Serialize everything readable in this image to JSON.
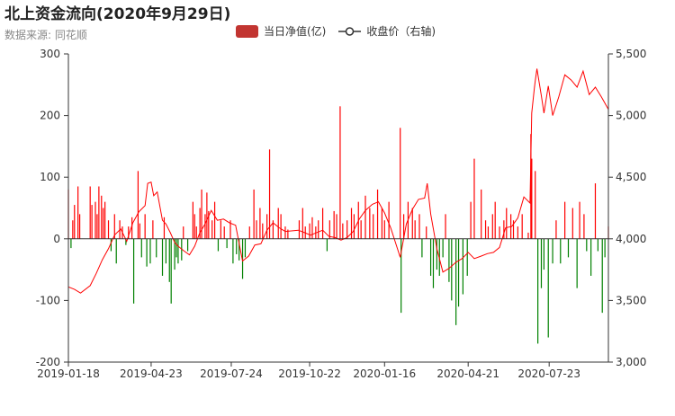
{
  "title": "北上资金流向(2020年9月29日)",
  "subtitle": "数据来源: 同花顺",
  "legend": {
    "bar_label": "当日净值(亿)",
    "line_label": "收盘价（右轴)"
  },
  "colors": {
    "positive_bar": "#ff0000",
    "negative_bar": "#008000",
    "line": "#ff0000",
    "legend_bar": "#c23531"
  },
  "chart_data": {
    "type": "bar",
    "x_tick_labels": [
      "2019-01-18",
      "2019-04-23",
      "2019-07-24",
      "2019-10-22",
      "2020-01-16",
      "2020-04-21",
      "2020-07-23"
    ],
    "x_range": [
      "2019-01-18",
      "2020-09-29"
    ],
    "y_left": {
      "min": -200,
      "max": 300,
      "ticks": [
        -200,
        -100,
        0,
        100,
        200,
        300
      ],
      "tick_labels": [
        "-200",
        "-100",
        "0",
        "100",
        "200",
        "300"
      ]
    },
    "y_right": {
      "min": 3000,
      "max": 5500,
      "ticks": [
        3000,
        3500,
        4000,
        4500,
        5000,
        5500
      ],
      "tick_labels": [
        "3,000",
        "3,500",
        "4,000",
        "4,500",
        "5,000",
        "5,500"
      ]
    },
    "grid": false,
    "legend_position": "top-center",
    "series": [
      {
        "name": "当日净值(亿)",
        "type": "bar",
        "axis": "left",
        "points": [
          [
            "2019-01-18",
            80
          ],
          [
            "2019-01-21",
            -15
          ],
          [
            "2019-01-23",
            30
          ],
          [
            "2019-01-25",
            55
          ],
          [
            "2019-01-29",
            85
          ],
          [
            "2019-01-31",
            40
          ],
          [
            "2019-02-12",
            85
          ],
          [
            "2019-02-14",
            55
          ],
          [
            "2019-02-18",
            60
          ],
          [
            "2019-02-20",
            40
          ],
          [
            "2019-02-22",
            85
          ],
          [
            "2019-02-25",
            70
          ],
          [
            "2019-02-27",
            50
          ],
          [
            "2019-03-01",
            60
          ],
          [
            "2019-03-05",
            30
          ],
          [
            "2019-03-08",
            -20
          ],
          [
            "2019-03-12",
            40
          ],
          [
            "2019-03-14",
            -40
          ],
          [
            "2019-03-18",
            30
          ],
          [
            "2019-03-21",
            20
          ],
          [
            "2019-03-25",
            -10
          ],
          [
            "2019-03-28",
            20
          ],
          [
            "2019-04-01",
            35
          ],
          [
            "2019-04-03",
            -105
          ],
          [
            "2019-04-08",
            110
          ],
          [
            "2019-04-10",
            25
          ],
          [
            "2019-04-12",
            -30
          ],
          [
            "2019-04-16",
            40
          ],
          [
            "2019-04-18",
            -45
          ],
          [
            "2019-04-22",
            -40
          ],
          [
            "2019-04-25",
            30
          ],
          [
            "2019-04-29",
            -30
          ],
          [
            "2019-05-06",
            -60
          ],
          [
            "2019-05-08",
            35
          ],
          [
            "2019-05-10",
            -40
          ],
          [
            "2019-05-14",
            -70
          ],
          [
            "2019-05-16",
            -105
          ],
          [
            "2019-05-20",
            -50
          ],
          [
            "2019-05-22",
            -30
          ],
          [
            "2019-05-24",
            -40
          ],
          [
            "2019-05-28",
            -35
          ],
          [
            "2019-05-30",
            20
          ],
          [
            "2019-06-04",
            -20
          ],
          [
            "2019-06-10",
            60
          ],
          [
            "2019-06-12",
            40
          ],
          [
            "2019-06-14",
            20
          ],
          [
            "2019-06-18",
            50
          ],
          [
            "2019-06-20",
            80
          ],
          [
            "2019-06-24",
            40
          ],
          [
            "2019-06-26",
            75
          ],
          [
            "2019-06-28",
            45
          ],
          [
            "2019-07-02",
            30
          ],
          [
            "2019-07-05",
            60
          ],
          [
            "2019-07-09",
            -20
          ],
          [
            "2019-07-12",
            30
          ],
          [
            "2019-07-16",
            20
          ],
          [
            "2019-07-19",
            -15
          ],
          [
            "2019-07-23",
            30
          ],
          [
            "2019-07-26",
            -40
          ],
          [
            "2019-07-30",
            -25
          ],
          [
            "2019-08-02",
            -35
          ],
          [
            "2019-08-06",
            -65
          ],
          [
            "2019-08-09",
            -30
          ],
          [
            "2019-08-14",
            20
          ],
          [
            "2019-08-19",
            80
          ],
          [
            "2019-08-22",
            30
          ],
          [
            "2019-08-26",
            50
          ],
          [
            "2019-08-29",
            25
          ],
          [
            "2019-09-03",
            40
          ],
          [
            "2019-09-06",
            145
          ],
          [
            "2019-09-10",
            30
          ],
          [
            "2019-09-16",
            50
          ],
          [
            "2019-09-19",
            40
          ],
          [
            "2019-09-24",
            20
          ],
          [
            "2019-09-27",
            15
          ],
          [
            "2019-10-10",
            30
          ],
          [
            "2019-10-14",
            50
          ],
          [
            "2019-10-17",
            20
          ],
          [
            "2019-10-22",
            25
          ],
          [
            "2019-10-25",
            35
          ],
          [
            "2019-10-29",
            20
          ],
          [
            "2019-11-01",
            30
          ],
          [
            "2019-11-06",
            50
          ],
          [
            "2019-11-11",
            -20
          ],
          [
            "2019-11-14",
            30
          ],
          [
            "2019-11-19",
            45
          ],
          [
            "2019-11-22",
            40
          ],
          [
            "2019-11-26",
            215
          ],
          [
            "2019-11-29",
            25
          ],
          [
            "2019-12-04",
            30
          ],
          [
            "2019-12-09",
            50
          ],
          [
            "2019-12-12",
            40
          ],
          [
            "2019-12-17",
            60
          ],
          [
            "2019-12-20",
            30
          ],
          [
            "2019-12-25",
            70
          ],
          [
            "2019-12-30",
            50
          ],
          [
            "2020-01-03",
            40
          ],
          [
            "2020-01-08",
            80
          ],
          [
            "2020-01-13",
            50
          ],
          [
            "2020-01-16",
            30
          ],
          [
            "2020-01-21",
            60
          ],
          [
            "2020-02-03",
            180
          ],
          [
            "2020-02-04",
            -120
          ],
          [
            "2020-02-07",
            40
          ],
          [
            "2020-02-12",
            60
          ],
          [
            "2020-02-17",
            50
          ],
          [
            "2020-02-20",
            30
          ],
          [
            "2020-02-25",
            40
          ],
          [
            "2020-02-28",
            -30
          ],
          [
            "2020-03-04",
            20
          ],
          [
            "2020-03-09",
            -60
          ],
          [
            "2020-03-12",
            -80
          ],
          [
            "2020-03-16",
            -50
          ],
          [
            "2020-03-19",
            -60
          ],
          [
            "2020-03-23",
            -30
          ],
          [
            "2020-03-26",
            40
          ],
          [
            "2020-03-30",
            -70
          ],
          [
            "2020-04-02",
            -100
          ],
          [
            "2020-04-07",
            -140
          ],
          [
            "2020-04-10",
            -110
          ],
          [
            "2020-04-15",
            -90
          ],
          [
            "2020-04-20",
            -60
          ],
          [
            "2020-04-24",
            60
          ],
          [
            "2020-04-28",
            130
          ],
          [
            "2020-05-06",
            80
          ],
          [
            "2020-05-11",
            30
          ],
          [
            "2020-05-14",
            20
          ],
          [
            "2020-05-19",
            40
          ],
          [
            "2020-05-22",
            60
          ],
          [
            "2020-05-27",
            20
          ],
          [
            "2020-06-01",
            30
          ],
          [
            "2020-06-04",
            50
          ],
          [
            "2020-06-09",
            40
          ],
          [
            "2020-06-12",
            30
          ],
          [
            "2020-06-17",
            20
          ],
          [
            "2020-06-22",
            40
          ],
          [
            "2020-06-29",
            10
          ],
          [
            "2020-07-02",
            170
          ],
          [
            "2020-07-03",
            130
          ],
          [
            "2020-07-07",
            110
          ],
          [
            "2020-07-10",
            -170
          ],
          [
            "2020-07-14",
            -80
          ],
          [
            "2020-07-17",
            -50
          ],
          [
            "2020-07-22",
            -160
          ],
          [
            "2020-07-27",
            -40
          ],
          [
            "2020-07-31",
            30
          ],
          [
            "2020-08-05",
            -40
          ],
          [
            "2020-08-10",
            60
          ],
          [
            "2020-08-14",
            -30
          ],
          [
            "2020-08-19",
            50
          ],
          [
            "2020-08-24",
            -80
          ],
          [
            "2020-08-27",
            60
          ],
          [
            "2020-09-01",
            40
          ],
          [
            "2020-09-04",
            -20
          ],
          [
            "2020-09-09",
            -60
          ],
          [
            "2020-09-14",
            90
          ],
          [
            "2020-09-17",
            -20
          ],
          [
            "2020-09-22",
            -120
          ],
          [
            "2020-09-25",
            -30
          ],
          [
            "2020-09-29",
            20
          ]
        ]
      },
      {
        "name": "收盘价（右轴)",
        "type": "line",
        "axis": "right",
        "points": [
          [
            "2019-01-18",
            3610
          ],
          [
            "2019-01-25",
            3590
          ],
          [
            "2019-02-01",
            3560
          ],
          [
            "2019-02-12",
            3620
          ],
          [
            "2019-02-19",
            3720
          ],
          [
            "2019-02-26",
            3830
          ],
          [
            "2019-03-05",
            3920
          ],
          [
            "2019-03-12",
            4030
          ],
          [
            "2019-03-19",
            4080
          ],
          [
            "2019-03-26",
            3980
          ],
          [
            "2019-04-02",
            4130
          ],
          [
            "2019-04-09",
            4220
          ],
          [
            "2019-04-16",
            4270
          ],
          [
            "2019-04-19",
            4450
          ],
          [
            "2019-04-23",
            4460
          ],
          [
            "2019-04-26",
            4350
          ],
          [
            "2019-04-30",
            4380
          ],
          [
            "2019-05-06",
            4150
          ],
          [
            "2019-05-10",
            4120
          ],
          [
            "2019-05-15",
            4050
          ],
          [
            "2019-05-20",
            3970
          ],
          [
            "2019-05-24",
            3940
          ],
          [
            "2019-05-31",
            3900
          ],
          [
            "2019-06-06",
            3870
          ],
          [
            "2019-06-12",
            3940
          ],
          [
            "2019-06-18",
            4050
          ],
          [
            "2019-06-24",
            4120
          ],
          [
            "2019-07-01",
            4230
          ],
          [
            "2019-07-08",
            4150
          ],
          [
            "2019-07-15",
            4160
          ],
          [
            "2019-07-22",
            4130
          ],
          [
            "2019-07-29",
            4110
          ],
          [
            "2019-08-06",
            3820
          ],
          [
            "2019-08-13",
            3860
          ],
          [
            "2019-08-20",
            3950
          ],
          [
            "2019-08-27",
            3960
          ],
          [
            "2019-09-03",
            4070
          ],
          [
            "2019-09-10",
            4130
          ],
          [
            "2019-09-17",
            4090
          ],
          [
            "2019-09-24",
            4060
          ],
          [
            "2019-10-09",
            4070
          ],
          [
            "2019-10-16",
            4050
          ],
          [
            "2019-10-23",
            4030
          ],
          [
            "2019-10-30",
            4050
          ],
          [
            "2019-11-06",
            4070
          ],
          [
            "2019-11-13",
            4020
          ],
          [
            "2019-11-20",
            4010
          ],
          [
            "2019-11-27",
            3990
          ],
          [
            "2019-12-04",
            4010
          ],
          [
            "2019-12-11",
            4060
          ],
          [
            "2019-12-18",
            4160
          ],
          [
            "2019-12-25",
            4230
          ],
          [
            "2020-01-02",
            4280
          ],
          [
            "2020-01-09",
            4300
          ],
          [
            "2020-01-16",
            4210
          ],
          [
            "2020-01-23",
            4090
          ],
          [
            "2020-02-03",
            3850
          ],
          [
            "2020-02-10",
            4120
          ],
          [
            "2020-02-17",
            4240
          ],
          [
            "2020-02-24",
            4320
          ],
          [
            "2020-03-02",
            4330
          ],
          [
            "2020-03-05",
            4450
          ],
          [
            "2020-03-09",
            4200
          ],
          [
            "2020-03-16",
            3920
          ],
          [
            "2020-03-23",
            3730
          ],
          [
            "2020-03-30",
            3760
          ],
          [
            "2020-04-07",
            3810
          ],
          [
            "2020-04-14",
            3840
          ],
          [
            "2020-04-21",
            3890
          ],
          [
            "2020-04-28",
            3840
          ],
          [
            "2020-05-06",
            3860
          ],
          [
            "2020-05-13",
            3880
          ],
          [
            "2020-05-20",
            3890
          ],
          [
            "2020-05-27",
            3930
          ],
          [
            "2020-06-03",
            4090
          ],
          [
            "2020-06-10",
            4100
          ],
          [
            "2020-06-17",
            4170
          ],
          [
            "2020-06-24",
            4340
          ],
          [
            "2020-07-01",
            4290
          ],
          [
            "2020-07-03",
            5020
          ],
          [
            "2020-07-06",
            5220
          ],
          [
            "2020-07-07",
            5280
          ],
          [
            "2020-07-09",
            5380
          ],
          [
            "2020-07-14",
            5160
          ],
          [
            "2020-07-17",
            5020
          ],
          [
            "2020-07-22",
            5240
          ],
          [
            "2020-07-27",
            5000
          ],
          [
            "2020-08-03",
            5150
          ],
          [
            "2020-08-10",
            5330
          ],
          [
            "2020-08-17",
            5290
          ],
          [
            "2020-08-24",
            5230
          ],
          [
            "2020-08-31",
            5360
          ],
          [
            "2020-09-07",
            5170
          ],
          [
            "2020-09-14",
            5230
          ],
          [
            "2020-09-21",
            5150
          ],
          [
            "2020-09-29",
            5050
          ]
        ]
      }
    ]
  }
}
